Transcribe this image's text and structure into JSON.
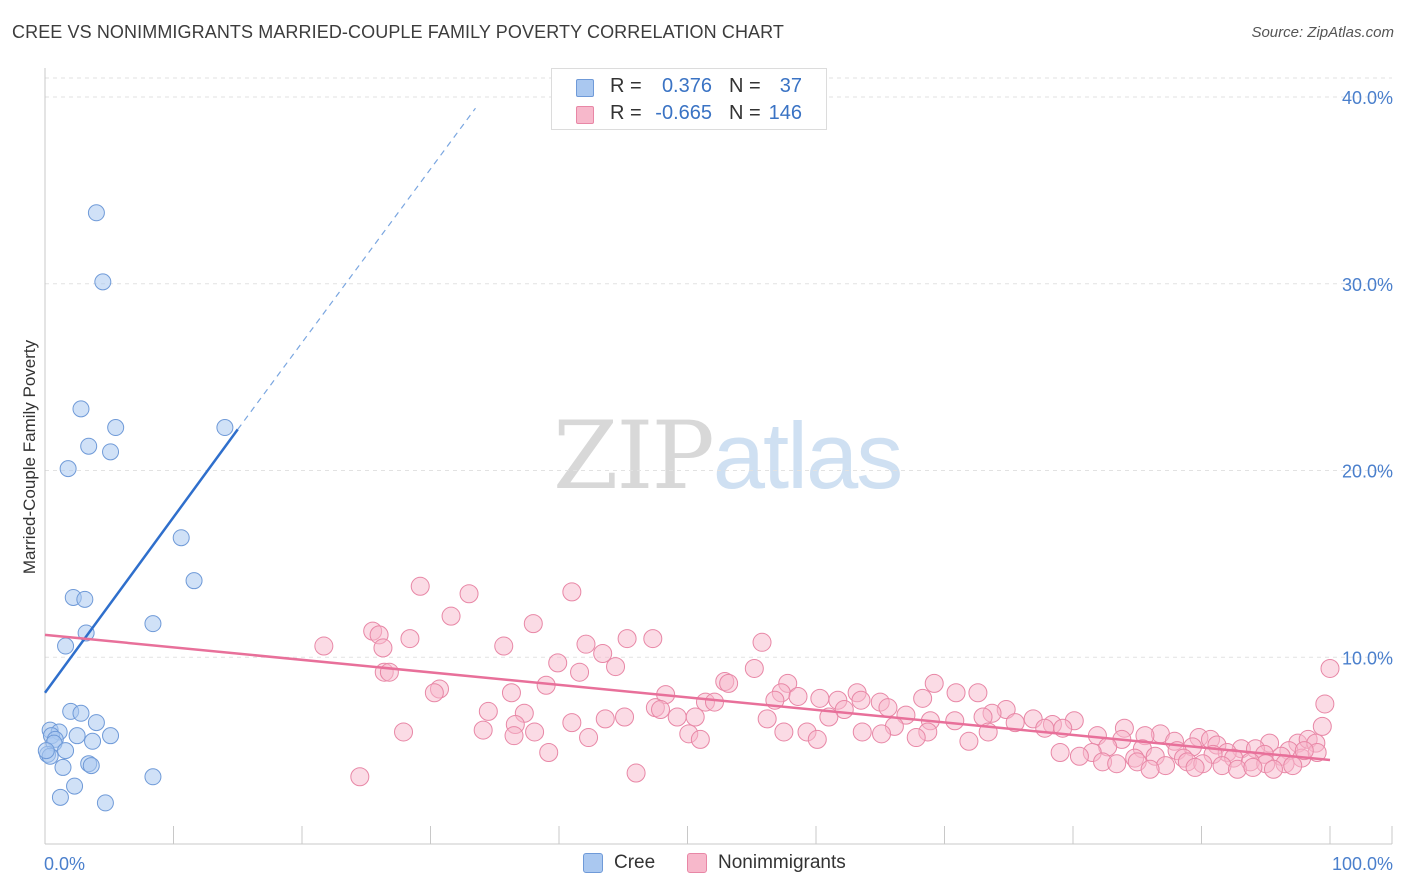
{
  "title": "CREE VS NONIMMIGRANTS MARRIED-COUPLE FAMILY POVERTY CORRELATION CHART",
  "source": "Source: ZipAtlas.com",
  "watermark": {
    "zip": "ZIP",
    "atlas": "atlas"
  },
  "legend": {
    "rows": [
      {
        "r_label": "R =",
        "r_value": "0.376",
        "n_label": "N =",
        "n_value": "37",
        "fill": "#aac8f0",
        "stroke": "#6f9ad8"
      },
      {
        "r_label": "R =",
        "r_value": "-0.665",
        "n_label": "N =",
        "n_value": "146",
        "fill": "#f7b8cb",
        "stroke": "#e887a6"
      }
    ]
  },
  "chart_data": {
    "type": "scatter",
    "title": "CREE VS NONIMMIGRANTS MARRIED-COUPLE FAMILY POVERTY CORRELATION CHART",
    "xlabel": "",
    "ylabel": "Married-Couple Family Poverty",
    "xlim": [
      0,
      100
    ],
    "ylim": [
      0,
      40
    ],
    "x_tick_labels": [
      "0.0%",
      "100.0%"
    ],
    "y_ticks": [
      10,
      20,
      30,
      40
    ],
    "y_tick_labels": [
      "10.0%",
      "20.0%",
      "30.0%",
      "40.0%"
    ],
    "grid": true,
    "legend_position": "top-center",
    "series": [
      {
        "name": "Cree",
        "color": "#6f9ad8",
        "fill": "#aac8f0",
        "trend": {
          "x": [
            0,
            15
          ],
          "y": [
            8.1,
            22.2
          ],
          "dashed_to": [
            33.5,
            39.4
          ]
        },
        "points": [
          [
            4.0,
            33.8
          ],
          [
            4.5,
            30.1
          ],
          [
            2.8,
            23.3
          ],
          [
            5.5,
            22.3
          ],
          [
            3.4,
            21.3
          ],
          [
            5.1,
            21.0
          ],
          [
            1.8,
            20.1
          ],
          [
            14.0,
            22.3
          ],
          [
            10.6,
            16.4
          ],
          [
            11.6,
            14.1
          ],
          [
            2.2,
            13.2
          ],
          [
            3.1,
            13.1
          ],
          [
            8.4,
            11.8
          ],
          [
            3.2,
            11.3
          ],
          [
            1.6,
            10.6
          ],
          [
            2.0,
            7.1
          ],
          [
            2.8,
            7.0
          ],
          [
            4.0,
            6.5
          ],
          [
            0.4,
            6.1
          ],
          [
            1.1,
            6.0
          ],
          [
            0.5,
            5.8
          ],
          [
            2.5,
            5.8
          ],
          [
            5.1,
            5.8
          ],
          [
            0.8,
            5.6
          ],
          [
            3.7,
            5.5
          ],
          [
            0.7,
            5.4
          ],
          [
            1.6,
            5.0
          ],
          [
            0.2,
            4.8
          ],
          [
            0.4,
            4.7
          ],
          [
            3.4,
            4.3
          ],
          [
            3.6,
            4.2
          ],
          [
            1.4,
            4.1
          ],
          [
            8.4,
            3.6
          ],
          [
            2.3,
            3.1
          ],
          [
            1.2,
            2.5
          ],
          [
            4.7,
            2.2
          ],
          [
            0.1,
            5.0
          ]
        ]
      },
      {
        "name": "Nonimmigrants",
        "color": "#e887a6",
        "fill": "#f7b8cb",
        "trend": {
          "x": [
            0,
            100
          ],
          "y": [
            11.2,
            4.5
          ]
        },
        "points": [
          [
            29.2,
            13.8
          ],
          [
            33.0,
            13.4
          ],
          [
            41.0,
            13.5
          ],
          [
            31.6,
            12.2
          ],
          [
            38.0,
            11.8
          ],
          [
            25.5,
            11.4
          ],
          [
            26.0,
            11.2
          ],
          [
            28.4,
            11.0
          ],
          [
            45.3,
            11.0
          ],
          [
            47.3,
            11.0
          ],
          [
            21.7,
            10.6
          ],
          [
            26.3,
            10.5
          ],
          [
            35.7,
            10.6
          ],
          [
            42.1,
            10.7
          ],
          [
            43.4,
            10.2
          ],
          [
            55.8,
            10.8
          ],
          [
            39.9,
            9.7
          ],
          [
            44.4,
            9.5
          ],
          [
            26.4,
            9.2
          ],
          [
            26.8,
            9.2
          ],
          [
            41.6,
            9.2
          ],
          [
            55.2,
            9.4
          ],
          [
            52.9,
            8.7
          ],
          [
            39.0,
            8.5
          ],
          [
            53.2,
            8.6
          ],
          [
            57.8,
            8.6
          ],
          [
            69.2,
            8.6
          ],
          [
            30.7,
            8.3
          ],
          [
            30.3,
            8.1
          ],
          [
            36.3,
            8.1
          ],
          [
            48.3,
            8.0
          ],
          [
            57.3,
            8.1
          ],
          [
            63.2,
            8.1
          ],
          [
            70.9,
            8.1
          ],
          [
            72.6,
            8.1
          ],
          [
            58.6,
            7.9
          ],
          [
            60.3,
            7.8
          ],
          [
            61.7,
            7.7
          ],
          [
            68.3,
            7.8
          ],
          [
            51.4,
            7.6
          ],
          [
            52.1,
            7.6
          ],
          [
            56.8,
            7.7
          ],
          [
            63.5,
            7.7
          ],
          [
            65.0,
            7.6
          ],
          [
            47.5,
            7.3
          ],
          [
            47.9,
            7.2
          ],
          [
            62.2,
            7.2
          ],
          [
            65.6,
            7.3
          ],
          [
            74.8,
            7.2
          ],
          [
            73.7,
            7.0
          ],
          [
            34.5,
            7.1
          ],
          [
            37.3,
            7.0
          ],
          [
            49.2,
            6.8
          ],
          [
            50.6,
            6.8
          ],
          [
            56.2,
            6.7
          ],
          [
            61.0,
            6.8
          ],
          [
            73.0,
            6.8
          ],
          [
            76.9,
            6.7
          ],
          [
            43.6,
            6.7
          ],
          [
            45.1,
            6.8
          ],
          [
            67.0,
            6.9
          ],
          [
            68.9,
            6.6
          ],
          [
            70.8,
            6.6
          ],
          [
            75.5,
            6.5
          ],
          [
            78.4,
            6.4
          ],
          [
            80.1,
            6.6
          ],
          [
            41.0,
            6.5
          ],
          [
            36.6,
            6.4
          ],
          [
            66.1,
            6.3
          ],
          [
            79.2,
            6.2
          ],
          [
            27.9,
            6.0
          ],
          [
            34.1,
            6.1
          ],
          [
            38.1,
            6.0
          ],
          [
            50.1,
            5.9
          ],
          [
            57.5,
            6.0
          ],
          [
            59.3,
            6.0
          ],
          [
            63.6,
            6.0
          ],
          [
            68.7,
            6.0
          ],
          [
            73.4,
            6.0
          ],
          [
            84.0,
            6.2
          ],
          [
            86.8,
            5.9
          ],
          [
            89.8,
            5.7
          ],
          [
            90.7,
            5.6
          ],
          [
            89.3,
            5.2
          ],
          [
            36.5,
            5.8
          ],
          [
            42.3,
            5.7
          ],
          [
            51.0,
            5.6
          ],
          [
            60.1,
            5.6
          ],
          [
            65.1,
            5.9
          ],
          [
            67.8,
            5.7
          ],
          [
            71.9,
            5.5
          ],
          [
            77.8,
            6.2
          ],
          [
            81.9,
            5.8
          ],
          [
            83.8,
            5.6
          ],
          [
            85.6,
            5.8
          ],
          [
            87.9,
            5.5
          ],
          [
            93.1,
            5.1
          ],
          [
            95.3,
            5.4
          ],
          [
            97.5,
            5.4
          ],
          [
            98.3,
            5.6
          ],
          [
            82.7,
            5.2
          ],
          [
            85.4,
            5.1
          ],
          [
            88.1,
            5.0
          ],
          [
            91.2,
            5.3
          ],
          [
            92.0,
            4.9
          ],
          [
            94.2,
            5.1
          ],
          [
            96.8,
            5.0
          ],
          [
            98.9,
            5.4
          ],
          [
            39.2,
            4.9
          ],
          [
            79.0,
            4.9
          ],
          [
            81.5,
            4.9
          ],
          [
            84.8,
            4.6
          ],
          [
            86.4,
            4.7
          ],
          [
            88.6,
            4.6
          ],
          [
            90.9,
            4.8
          ],
          [
            92.5,
            4.6
          ],
          [
            94.9,
            4.8
          ],
          [
            96.2,
            4.7
          ],
          [
            97.8,
            4.6
          ],
          [
            99.0,
            4.9
          ],
          [
            80.5,
            4.7
          ],
          [
            82.3,
            4.4
          ],
          [
            83.4,
            4.3
          ],
          [
            85.0,
            4.4
          ],
          [
            87.2,
            4.2
          ],
          [
            88.9,
            4.4
          ],
          [
            90.1,
            4.3
          ],
          [
            91.6,
            4.2
          ],
          [
            93.8,
            4.4
          ],
          [
            95.0,
            4.3
          ],
          [
            96.5,
            4.3
          ],
          [
            97.1,
            4.2
          ],
          [
            89.5,
            4.1
          ],
          [
            86.0,
            4.0
          ],
          [
            92.8,
            4.0
          ],
          [
            94.0,
            4.1
          ],
          [
            95.6,
            4.0
          ],
          [
            46.0,
            3.8
          ],
          [
            24.5,
            3.6
          ],
          [
            100.0,
            9.4
          ],
          [
            99.6,
            7.5
          ],
          [
            99.4,
            6.3
          ],
          [
            98.0,
            5.0
          ]
        ]
      }
    ]
  }
}
